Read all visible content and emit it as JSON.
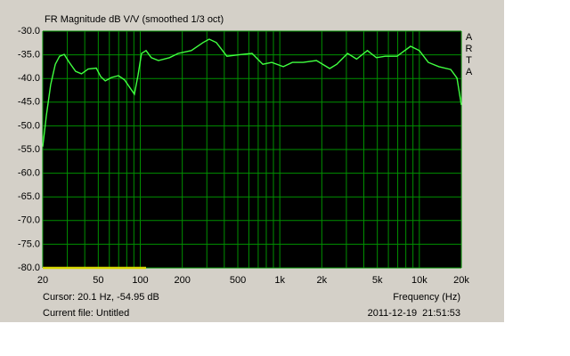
{
  "chart_data": {
    "type": "line",
    "title": "FR Magnitude dB V/V (smoothed 1/3 oct)",
    "side_label": "ARTA",
    "xlabel": "Frequency (Hz)",
    "cursor_text": "Cursor: 20.1 Hz, -54.95 dB",
    "file_text": "Current file: Untitled",
    "timestamp": "2011-12-19  21:51:53",
    "log_x": true,
    "grid": true,
    "grid_color": "#009000",
    "background": "#000000",
    "xlim": [
      20,
      20000
    ],
    "ylim": [
      -80,
      -30
    ],
    "yticks": [
      {
        "value": -30,
        "label": "-30.0"
      },
      {
        "value": -35,
        "label": "-35.0"
      },
      {
        "value": -40,
        "label": "-40.0"
      },
      {
        "value": -45,
        "label": "-45.0"
      },
      {
        "value": -50,
        "label": "-50.0"
      },
      {
        "value": -55,
        "label": "-55.0"
      },
      {
        "value": -60,
        "label": "-60.0"
      },
      {
        "value": -65,
        "label": "-65.0"
      },
      {
        "value": -70,
        "label": "-70.0"
      },
      {
        "value": -75,
        "label": "-75.0"
      },
      {
        "value": -80,
        "label": "-80.0"
      }
    ],
    "xticks": [
      20,
      50,
      100,
      200,
      500,
      {
        "value": 1000,
        "label": "1k"
      },
      {
        "value": 2000,
        "label": "2k"
      },
      {
        "value": 5000,
        "label": "5k"
      },
      {
        "value": 10000,
        "label": "10k"
      },
      {
        "value": 20000,
        "label": "20k"
      }
    ],
    "xgrid_minor": [
      30,
      40,
      60,
      70,
      80,
      90,
      300,
      400,
      600,
      700,
      800,
      900,
      3000,
      4000,
      6000,
      7000,
      8000,
      9000
    ],
    "series": [
      {
        "color": "#40ff40",
        "x": [
          20,
          21.2,
          22.8,
          24.6,
          26.4,
          28.5,
          31,
          34.4,
          37.9,
          42.3,
          48.4,
          52.1,
          56.1,
          62,
          69.8,
          77.2,
          85.5,
          90.7,
          96.3,
          102,
          110,
          120,
          135,
          162,
          187,
          232,
          282,
          312,
          351,
          418,
          506,
          632,
          756,
          875,
          1060,
          1230,
          1470,
          1830,
          2280,
          2560,
          3060,
          3550,
          4240,
          4920,
          5700,
          6920,
          8660,
          10000,
          11600,
          13800,
          16800,
          18600,
          20000
        ],
        "values": [
          -54.4,
          -47.9,
          -41.3,
          -37,
          -35.3,
          -34.9,
          -36.6,
          -38.5,
          -39,
          -38,
          -37.8,
          -39.6,
          -40.5,
          -39.8,
          -39.4,
          -40.3,
          -42.2,
          -43.3,
          -39.4,
          -34.7,
          -34.1,
          -35.6,
          -36.2,
          -35.6,
          -34.7,
          -34.1,
          -32.4,
          -31.7,
          -32.4,
          -35.3,
          -35,
          -34.7,
          -37,
          -36.6,
          -37.5,
          -36.6,
          -36.6,
          -36.2,
          -37.9,
          -37,
          -34.7,
          -35.9,
          -34.1,
          -35.6,
          -35.3,
          -35.3,
          -33.2,
          -34.1,
          -36.6,
          -37.5,
          -38.1,
          -39.9,
          -45.6
        ]
      },
      {
        "color": "#d8d800",
        "x": [
          20,
          110
        ],
        "values": [
          -80,
          -80
        ]
      }
    ]
  }
}
